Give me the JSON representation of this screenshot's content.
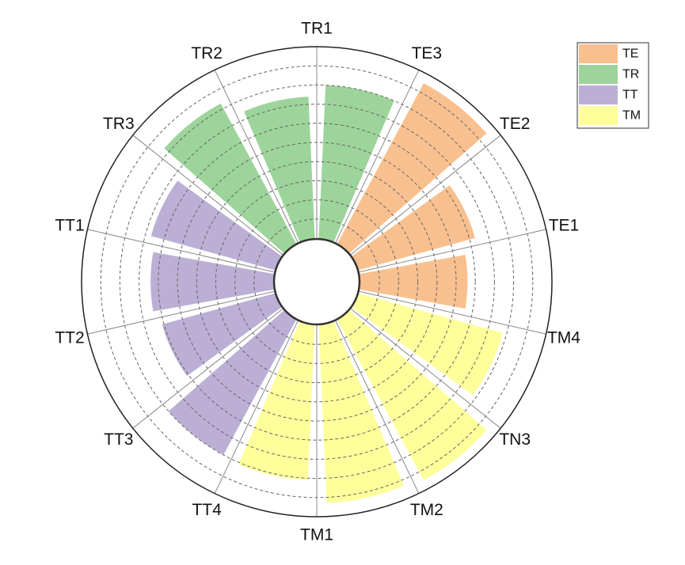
{
  "chart_data": {
    "type": "bar",
    "subtype": "polar",
    "title": "",
    "categories": [
      "TR1",
      "TE3",
      "TE2",
      "TE1",
      "TM4",
      "TN3",
      "TM2",
      "TM1",
      "TT4",
      "TT3",
      "TT2",
      "TT1",
      "TR3",
      "TR2"
    ],
    "groups": [
      "TR",
      "TE",
      "TE",
      "TE",
      "TM",
      "TM",
      "TM",
      "TM",
      "TT",
      "TT",
      "TT",
      "TT",
      "TR",
      "TR"
    ],
    "values": [
      8.0,
      9.5,
      6.3,
      5.6,
      7.8,
      9.5,
      9.3,
      8.1,
      8.0,
      6.1,
      6.4,
      6.7,
      8.3,
      7.4
    ],
    "rlim": [
      0,
      10
    ],
    "grid": true,
    "legend": {
      "placement": "top-right",
      "entries": [
        {
          "name": "TE",
          "color": "#f9c08f"
        },
        {
          "name": "TR",
          "color": "#9dd49b"
        },
        {
          "name": "TT",
          "color": "#bcafd5"
        },
        {
          "name": "TM",
          "color": "#fefe9b"
        }
      ]
    }
  }
}
